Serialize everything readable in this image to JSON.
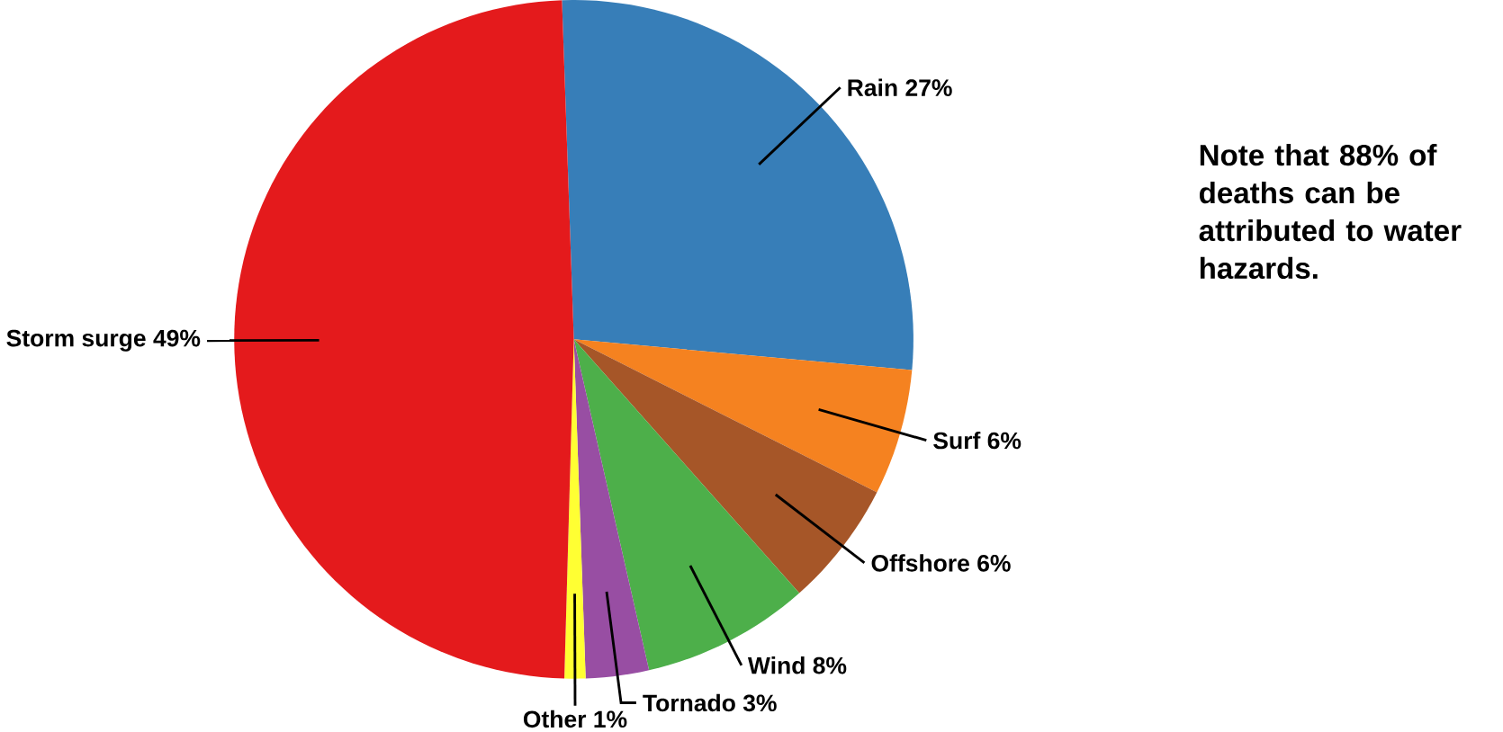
{
  "chart_data": {
    "type": "pie",
    "categories": [
      "Rain",
      "Surf",
      "Offshore",
      "Wind",
      "Tornado",
      "Other",
      "Storm surge"
    ],
    "values": [
      27,
      6,
      6,
      8,
      3,
      1,
      49
    ],
    "value_labels": [
      "27%",
      "6%",
      "6%",
      "8%",
      "3%",
      "1%",
      "49%"
    ],
    "colors": [
      "#377eb8",
      "#f58220",
      "#a65628",
      "#4daf4a",
      "#984ea3",
      "#ffff33",
      "#e41a1c"
    ],
    "annotations": [
      "Note that 88% of deaths can be attributed to water hazards."
    ]
  }
}
